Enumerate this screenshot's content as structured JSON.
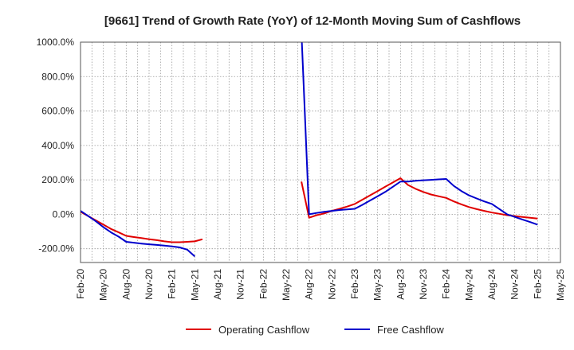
{
  "chart_data": {
    "type": "line",
    "title": "[9661]  Trend of Growth Rate (YoY) of 12-Month Moving Sum of Cashflows",
    "xlabel": "",
    "ylabel": "",
    "x_ticks": [
      "Feb-20",
      "May-20",
      "Aug-20",
      "Nov-20",
      "Feb-21",
      "May-21",
      "Aug-21",
      "Nov-21",
      "Feb-22",
      "May-22",
      "Aug-22",
      "Nov-22",
      "Feb-23",
      "May-23",
      "Aug-23",
      "Nov-23",
      "Feb-24",
      "May-24",
      "Aug-24",
      "Nov-24",
      "Feb-25",
      "May-25"
    ],
    "y_ticks": [
      -200,
      0,
      200,
      400,
      600,
      800,
      1000
    ],
    "y_tick_labels": [
      "-200.0%",
      "0.0%",
      "200.0%",
      "400.0%",
      "600.0%",
      "800.0%",
      "1000.0%"
    ],
    "ylim": [
      -280,
      1000
    ],
    "grid": true,
    "legend_position": "bottom",
    "series": [
      {
        "name": "Operating Cashflow",
        "color": "#e00000",
        "points": [
          [
            "Feb-20",
            15
          ],
          [
            "Mar-20",
            -10
          ],
          [
            "Apr-20",
            -35
          ],
          [
            "May-20",
            -60
          ],
          [
            "Jun-20",
            -85
          ],
          [
            "Jul-20",
            -105
          ],
          [
            "Aug-20",
            -125
          ],
          [
            "Sep-20",
            -132
          ],
          [
            "Oct-20",
            -138
          ],
          [
            "Nov-20",
            -145
          ],
          [
            "Dec-20",
            -150
          ],
          [
            "Jan-21",
            -157
          ],
          [
            "Feb-21",
            -162
          ],
          [
            "Mar-21",
            -162
          ],
          [
            "Apr-21",
            -160
          ],
          [
            "May-21",
            -157
          ],
          [
            "Jun-21",
            -145
          ],
          null,
          [
            "Jul-22",
            190
          ],
          [
            "Aug-22",
            -20
          ],
          [
            "Sep-22",
            -5
          ],
          [
            "Oct-22",
            5
          ],
          [
            "Nov-22",
            20
          ],
          [
            "Dec-22",
            32
          ],
          [
            "Jan-23",
            45
          ],
          [
            "Feb-23",
            60
          ],
          [
            "Mar-23",
            85
          ],
          [
            "Apr-23",
            110
          ],
          [
            "May-23",
            135
          ],
          [
            "Jun-23",
            160
          ],
          [
            "Jul-23",
            185
          ],
          [
            "Aug-23",
            210
          ],
          [
            "Sep-23",
            170
          ],
          [
            "Oct-23",
            148
          ],
          [
            "Nov-23",
            130
          ],
          [
            "Dec-23",
            115
          ],
          [
            "Jan-24",
            105
          ],
          [
            "Feb-24",
            95
          ],
          [
            "Mar-24",
            75
          ],
          [
            "Apr-24",
            58
          ],
          [
            "May-24",
            42
          ],
          [
            "Jun-24",
            30
          ],
          [
            "Jul-24",
            20
          ],
          [
            "Aug-24",
            10
          ],
          [
            "Sep-24",
            3
          ],
          [
            "Oct-24",
            -5
          ],
          [
            "Nov-24",
            -10
          ],
          [
            "Dec-24",
            -15
          ],
          [
            "Jan-25",
            -20
          ],
          [
            "Feb-25",
            -25
          ]
        ]
      },
      {
        "name": "Free Cashflow",
        "color": "#0000cc",
        "points": [
          [
            "Feb-20",
            20
          ],
          [
            "Mar-20",
            -10
          ],
          [
            "Apr-20",
            -40
          ],
          [
            "May-20",
            -75
          ],
          [
            "Jun-20",
            -105
          ],
          [
            "Jul-20",
            -130
          ],
          [
            "Aug-20",
            -160
          ],
          [
            "Sep-20",
            -165
          ],
          [
            "Oct-20",
            -170
          ],
          [
            "Nov-20",
            -174
          ],
          [
            "Dec-20",
            -178
          ],
          [
            "Jan-21",
            -182
          ],
          [
            "Feb-21",
            -186
          ],
          [
            "Mar-21",
            -192
          ],
          [
            "Apr-21",
            -205
          ],
          [
            "May-21",
            -245
          ],
          null,
          [
            "Jul-22",
            1060
          ],
          [
            "Aug-22",
            0
          ],
          [
            "Sep-22",
            8
          ],
          [
            "Oct-22",
            15
          ],
          [
            "Nov-22",
            20
          ],
          [
            "Dec-22",
            25
          ],
          [
            "Jan-23",
            28
          ],
          [
            "Feb-23",
            32
          ],
          [
            "Mar-23",
            55
          ],
          [
            "Apr-23",
            80
          ],
          [
            "May-23",
            105
          ],
          [
            "Jun-23",
            130
          ],
          [
            "Jul-23",
            160
          ],
          [
            "Aug-23",
            190
          ],
          [
            "Sep-23",
            190
          ],
          [
            "Oct-23",
            195
          ],
          [
            "Nov-23",
            198
          ],
          [
            "Dec-23",
            200
          ],
          [
            "Jan-24",
            203
          ],
          [
            "Feb-24",
            205
          ],
          [
            "Mar-24",
            165
          ],
          [
            "Apr-24",
            135
          ],
          [
            "May-24",
            110
          ],
          [
            "Jun-24",
            92
          ],
          [
            "Jul-24",
            75
          ],
          [
            "Aug-24",
            60
          ],
          [
            "Sep-24",
            30
          ],
          [
            "Oct-24",
            0
          ],
          [
            "Nov-24",
            -15
          ],
          [
            "Dec-24",
            -30
          ],
          [
            "Jan-25",
            -45
          ],
          [
            "Feb-25",
            -60
          ]
        ]
      }
    ]
  }
}
